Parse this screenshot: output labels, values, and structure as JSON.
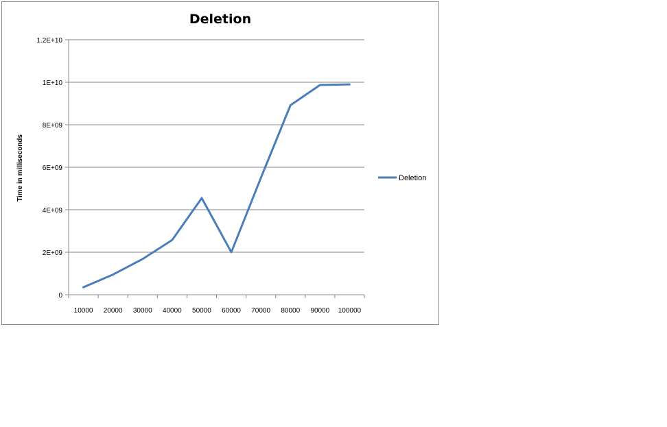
{
  "chart_data": {
    "type": "line",
    "title": "Deletion",
    "xlabel": "",
    "ylabel": "Time in milliseconds",
    "categories": [
      "10000",
      "20000",
      "30000",
      "40000",
      "50000",
      "60000",
      "70000",
      "80000",
      "90000",
      "100000"
    ],
    "series": [
      {
        "name": "Deletion",
        "color": "#4a7ebb",
        "values": [
          350000000,
          950000000,
          1680000000,
          2570000000,
          4550000000,
          2000000000,
          5500000000,
          8920000000,
          9870000000,
          9900000000
        ]
      }
    ],
    "ylim": [
      0,
      12000000000
    ],
    "y_ticks": [
      0,
      2000000000,
      4000000000,
      6000000000,
      8000000000,
      10000000000,
      12000000000
    ],
    "y_tick_labels": [
      "0",
      "2E+09",
      "4E+09",
      "6E+09",
      "8E+09",
      "1E+10",
      "1.2E+10"
    ],
    "grid": true,
    "legend": "right"
  }
}
